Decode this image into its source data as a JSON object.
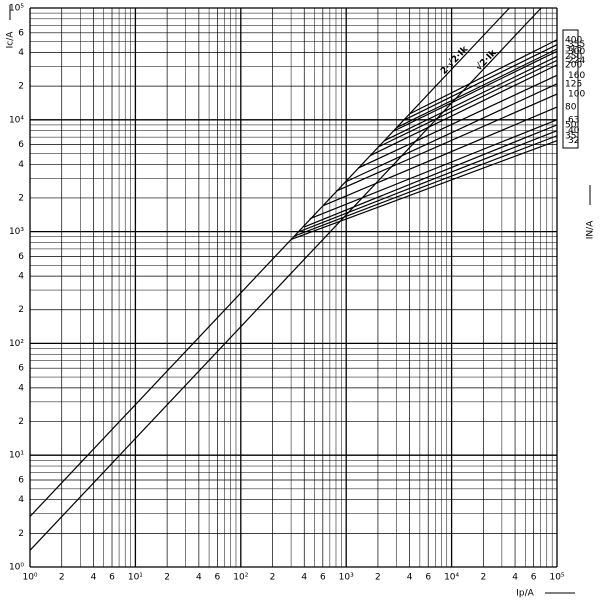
{
  "chart_data": {
    "type": "line",
    "xlabel": "Ip/A",
    "ylabel": "Ic/A",
    "y2label": "IN/A",
    "log_x": true,
    "log_y": true,
    "grid": true,
    "color": "#000000",
    "xlim": [
      1,
      100000
    ],
    "ylim": [
      1,
      100000
    ],
    "xticks": [
      {
        "value": 1,
        "label": "10⁰"
      },
      2,
      4,
      6,
      {
        "value": 10,
        "label": "10¹"
      },
      {
        "value": 20,
        "label": "2"
      },
      {
        "value": 40,
        "label": "4"
      },
      {
        "value": 60,
        "label": "6"
      },
      {
        "value": 100,
        "label": "10²"
      },
      {
        "value": 200,
        "label": "2"
      },
      {
        "value": 400,
        "label": "4"
      },
      {
        "value": 600,
        "label": "6"
      },
      {
        "value": 1000,
        "label": "10³"
      },
      {
        "value": 2000,
        "label": "2"
      },
      {
        "value": 4000,
        "label": "4"
      },
      {
        "value": 6000,
        "label": "6"
      },
      {
        "value": 10000,
        "label": "10⁴"
      },
      {
        "value": 20000,
        "label": "2"
      },
      {
        "value": 40000,
        "label": "4"
      },
      {
        "value": 60000,
        "label": "6"
      },
      {
        "value": 100000,
        "label": "10⁵"
      }
    ],
    "yticks": [
      {
        "value": 1,
        "label": "10⁰"
      },
      2,
      4,
      6,
      {
        "value": 10,
        "label": "10¹"
      },
      {
        "value": 20,
        "label": "2"
      },
      {
        "value": 40,
        "label": "4"
      },
      {
        "value": 60,
        "label": "6"
      },
      {
        "value": 100,
        "label": "10²"
      },
      {
        "value": 200,
        "label": "2"
      },
      {
        "value": 400,
        "label": "4"
      },
      {
        "value": 600,
        "label": "6"
      },
      {
        "value": 1000,
        "label": "10³"
      },
      {
        "value": 2000,
        "label": "2"
      },
      {
        "value": 4000,
        "label": "4"
      },
      {
        "value": 6000,
        "label": "6"
      },
      {
        "value": 10000,
        "label": "10⁴"
      },
      {
        "value": 20000,
        "label": "2"
      },
      {
        "value": 40000,
        "label": "4"
      },
      {
        "value": 60000,
        "label": "6"
      },
      {
        "value": 100000,
        "label": "10⁵"
      }
    ],
    "xminor": [
      3,
      5,
      7,
      8,
      9,
      30,
      50,
      70,
      80,
      90,
      300,
      500,
      700,
      800,
      900,
      3000,
      5000,
      7000,
      8000,
      9000,
      30000,
      50000,
      70000,
      80000,
      90000
    ],
    "yminor": [
      3,
      5,
      7,
      8,
      9,
      30,
      50,
      70,
      80,
      90,
      300,
      500,
      700,
      800,
      900,
      3000,
      5000,
      7000,
      8000,
      9000,
      30000,
      50000,
      70000,
      80000,
      90000
    ],
    "diagonals": [
      {
        "name": "2·√2·Ik",
        "x": [
          1,
          35355
        ],
        "values": [
          2.83,
          100000
        ]
      },
      {
        "name": "√2·Ik",
        "x": [
          1,
          70711
        ],
        "values": [
          1.41,
          100000
        ]
      }
    ],
    "series": [
      {
        "name": "400",
        "x": [
          4000,
          100000
        ],
        "values": [
          11300,
          52000
        ]
      },
      {
        "name": "355",
        "x": [
          3500,
          100000
        ],
        "values": [
          9900,
          47000
        ]
      },
      {
        "name": "315",
        "x": [
          3000,
          100000
        ],
        "values": [
          8500,
          43000
        ]
      },
      {
        "name": "300",
        "x": [
          2800,
          100000
        ],
        "values": [
          7900,
          41000
        ]
      },
      {
        "name": "250",
        "x": [
          2300,
          100000
        ],
        "values": [
          6500,
          37000
        ]
      },
      {
        "name": "224",
        "x": [
          2000,
          100000
        ],
        "values": [
          5700,
          34000
        ]
      },
      {
        "name": "200",
        "x": [
          1700,
          100000
        ],
        "values": [
          4800,
          31000
        ]
      },
      {
        "name": "160",
        "x": [
          1300,
          100000
        ],
        "values": [
          3700,
          25000
        ]
      },
      {
        "name": "125",
        "x": [
          1000,
          100000
        ],
        "values": [
          2800,
          21000
        ]
      },
      {
        "name": "100",
        "x": [
          800,
          100000
        ],
        "values": [
          2300,
          17000
        ]
      },
      {
        "name": "80",
        "x": [
          600,
          100000
        ],
        "values": [
          1700,
          13000
        ]
      },
      {
        "name": "63",
        "x": [
          450,
          100000
        ],
        "values": [
          1300,
          10000
        ]
      },
      {
        "name": "50",
        "x": [
          400,
          100000
        ],
        "values": [
          1100,
          9000
        ]
      },
      {
        "name": "40",
        "x": [
          350,
          100000
        ],
        "values": [
          990,
          8000
        ]
      },
      {
        "name": "35",
        "x": [
          320,
          100000
        ],
        "values": [
          910,
          7200
        ]
      },
      {
        "name": "32",
        "x": [
          300,
          100000
        ],
        "values": [
          850,
          6500
        ]
      }
    ]
  }
}
